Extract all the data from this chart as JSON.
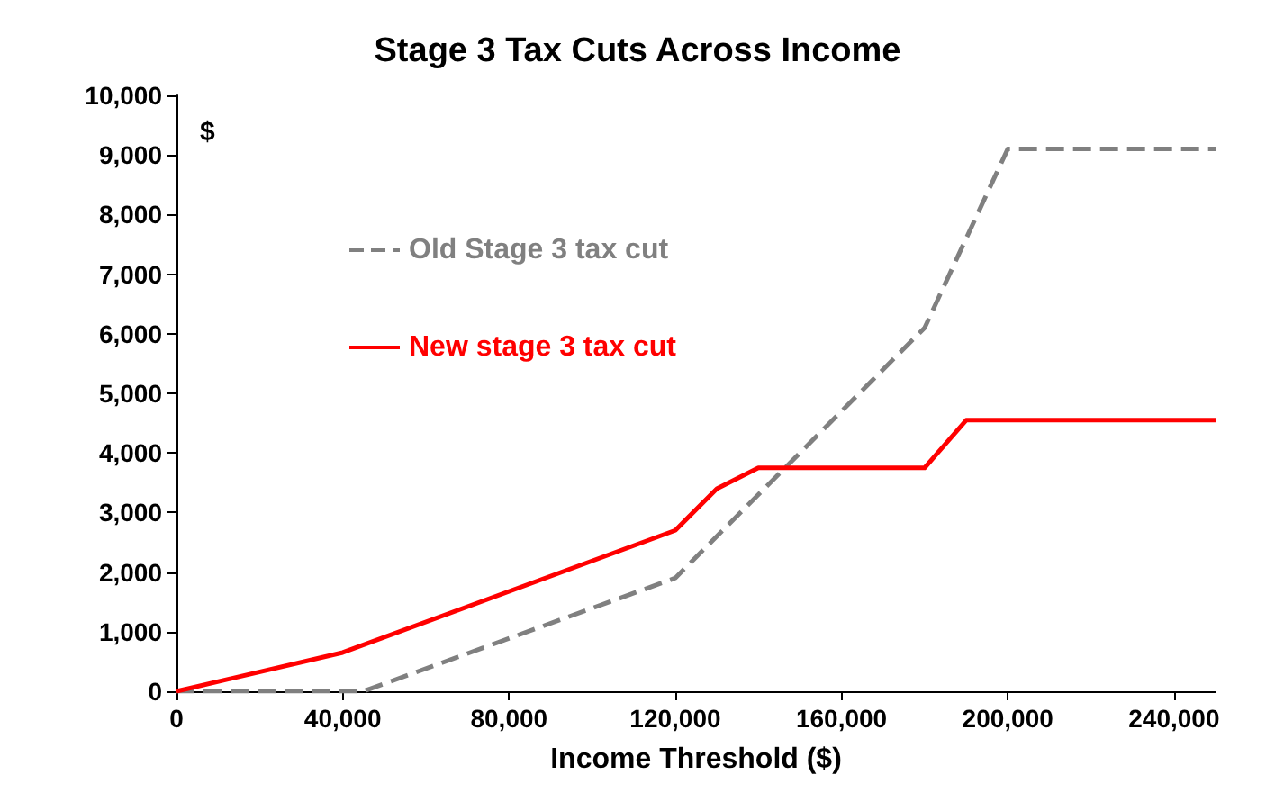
{
  "chart_data": {
    "type": "line",
    "title": "Stage 3 Tax Cuts Across Income",
    "xlabel": "Income Threshold ($)",
    "annotations": [
      "$"
    ],
    "xlim": [
      0,
      250000
    ],
    "xticks": [
      0,
      {
        "value": 40000,
        "label": "40,000"
      },
      {
        "value": 80000,
        "label": "80,000"
      },
      {
        "value": 120000,
        "label": "120,000"
      },
      {
        "value": 160000,
        "label": "160,000"
      },
      {
        "value": 200000,
        "label": "200,000"
      },
      {
        "value": 240000,
        "label": "240,000"
      }
    ],
    "ylim": [
      0,
      10000
    ],
    "yticks": [
      0,
      {
        "value": 1000,
        "label": "1,000"
      },
      {
        "value": 2000,
        "label": "2,000"
      },
      {
        "value": 3000,
        "label": "3,000"
      },
      {
        "value": 4000,
        "label": "4,000"
      },
      {
        "value": 5000,
        "label": "5,000"
      },
      {
        "value": 6000,
        "label": "6,000"
      },
      {
        "value": 7000,
        "label": "7,000"
      },
      {
        "value": 8000,
        "label": "8,000"
      },
      {
        "value": 9000,
        "label": "9,000"
      },
      {
        "value": 10000,
        "label": "10,000"
      }
    ],
    "grid": false,
    "legend": "top left",
    "marker": "none",
    "series": [
      {
        "name": "Old Stage 3 tax cut",
        "color": "#808080",
        "line_style": "dashed",
        "x": [
          0,
          45000,
          120000,
          180000,
          200000,
          250000
        ],
        "values": [
          0,
          0,
          1900,
          6100,
          9100,
          9100
        ]
      },
      {
        "name": "New stage 3 tax cut",
        "color": "#ff0000",
        "line_style": "solid",
        "x": [
          0,
          40000,
          120000,
          130000,
          140000,
          180000,
          190000,
          250000
        ],
        "values": [
          0,
          650,
          2700,
          3400,
          3750,
          3750,
          4550,
          4550
        ]
      }
    ]
  }
}
